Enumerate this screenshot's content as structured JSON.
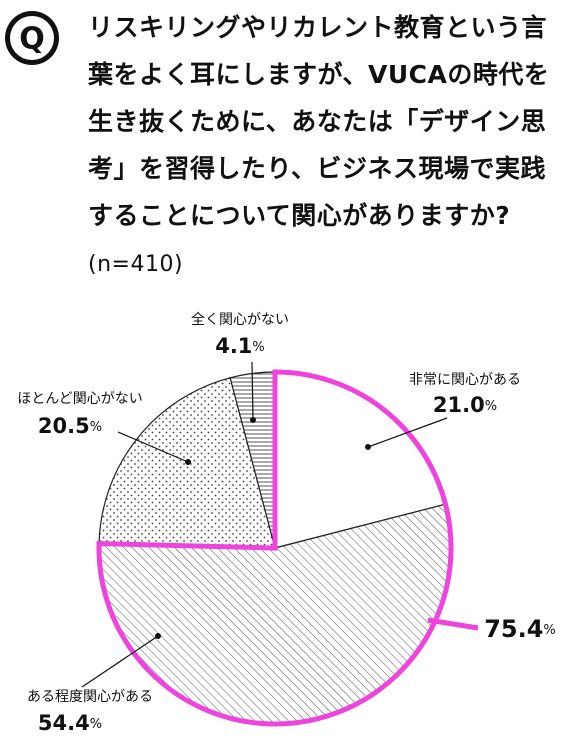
{
  "icon": "Q",
  "question": "リスキリングやリカレント教育という言葉をよく耳にしますが、VUCAの時代を生き抜くために、あなたは「デザイン思考」を習得したり、ビジネス現場で実践することについて関心がありますか?",
  "sample": "(n=410)",
  "chart_data": {
    "type": "pie",
    "categories": [
      "非常に関心がある",
      "ある程度関心がある",
      "ほとんど関心がない",
      "全く関心がない"
    ],
    "values": [
      21.0,
      54.4,
      20.5,
      4.1
    ],
    "value_labels": [
      "21.0",
      "54.4",
      "20.5",
      "4.1"
    ],
    "unit": "%",
    "fills": [
      "white",
      "hatch",
      "dots",
      "lines"
    ],
    "highlight": {
      "value": 75.4,
      "color": "#ee44dd"
    }
  }
}
